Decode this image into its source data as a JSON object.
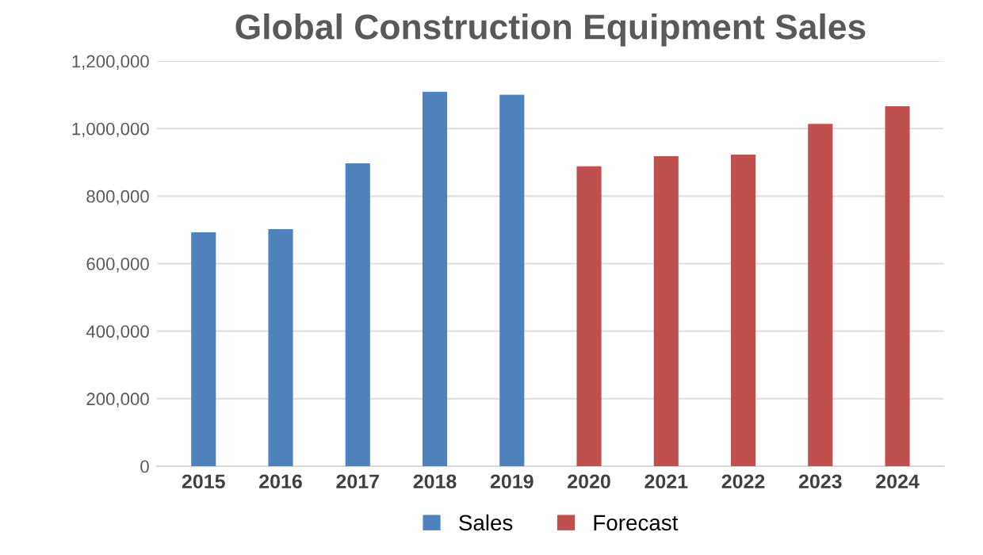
{
  "chart_data": {
    "type": "bar",
    "title": "Global Construction Equipment Sales",
    "categories": [
      "2015",
      "2016",
      "2017",
      "2018",
      "2019",
      "2020",
      "2021",
      "2022",
      "2023",
      "2024"
    ],
    "series": [
      {
        "name": "Sales",
        "color": "#4f81bd",
        "values": [
          693000,
          702000,
          897000,
          1109000,
          1100000,
          null,
          null,
          null,
          null,
          null
        ]
      },
      {
        "name": "Forecast",
        "color": "#c0504d",
        "values": [
          null,
          null,
          null,
          null,
          null,
          888000,
          918000,
          923000,
          1014000,
          1066000
        ]
      }
    ],
    "ylim": [
      0,
      1200000
    ],
    "yticks": [
      {
        "value": 0,
        "label": "0"
      },
      {
        "value": 200000,
        "label": "200,000"
      },
      {
        "value": 400000,
        "label": "400,000"
      },
      {
        "value": 600000,
        "label": "600,000"
      },
      {
        "value": 800000,
        "label": "800,000"
      },
      {
        "value": 1000000,
        "label": "1,000,000"
      },
      {
        "value": 1200000,
        "label": "1,200,000"
      }
    ],
    "grid": "y",
    "legend": "bottom"
  }
}
